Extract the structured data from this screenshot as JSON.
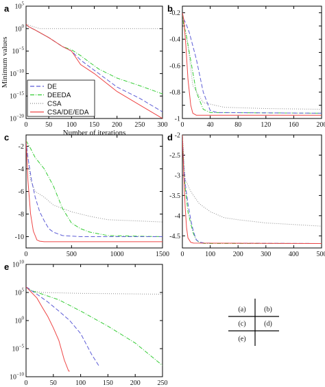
{
  "chart_data": [
    {
      "id": "a",
      "panel_label": "a",
      "type": "line",
      "yscale": "log",
      "xlabel": "Number of iterations",
      "ylabel": "Minimum values",
      "xlim": [
        0,
        300
      ],
      "ylim": [
        1e-20,
        100000.0
      ],
      "xticks": [
        0,
        50,
        100,
        150,
        200,
        250,
        300
      ],
      "yticks": [
        1e-20,
        1e-15,
        1e-10,
        1e-05,
        1,
        100000.0
      ],
      "ytick_labels": [
        {
          "base": "10",
          "exp": "−20"
        },
        {
          "base": "10",
          "exp": "−15"
        },
        {
          "base": "10",
          "exp": "−10"
        },
        {
          "base": "10",
          "exp": "−5"
        },
        {
          "base": "10",
          "exp": "0"
        },
        {
          "base": "10",
          "exp": "5"
        }
      ],
      "series": [
        {
          "name": "DE",
          "color": "#5b5bd6",
          "dash": "6,3",
          "x": [
            0,
            5,
            20,
            50,
            80,
            100,
            120,
            140,
            160,
            200,
            250,
            300
          ],
          "y": [
            10,
            3,
            0.5,
            0.01,
            0.0001,
            1e-05,
            1e-07,
            3e-09,
            1e-10,
            1e-13,
            3e-16,
            3e-19
          ]
        },
        {
          "name": "DEEDA",
          "color": "#33cc33",
          "dash": "6,2,1,2",
          "x": [
            0,
            5,
            20,
            50,
            80,
            100,
            120,
            140,
            160,
            200,
            250,
            300
          ],
          "y": [
            10,
            3,
            0.5,
            0.01,
            0.0001,
            2e-05,
            1e-06,
            3e-08,
            1e-09,
            1e-11,
            2e-13,
            3e-15
          ]
        },
        {
          "name": "CSA",
          "color": "#8a8a8a",
          "dash": "1,2",
          "x": [
            0,
            15,
            30,
            300
          ],
          "y": [
            10,
            3,
            1,
            1
          ]
        },
        {
          "name": "CSA/DE/EDA",
          "color": "#ee4444",
          "dash": "",
          "x": [
            0,
            5,
            20,
            50,
            80,
            100,
            120,
            150,
            200,
            250,
            300
          ],
          "y": [
            10,
            3,
            0.5,
            0.01,
            0.0001,
            1e-05,
            1e-08,
            1e-10,
            1e-14,
            1e-17,
            1e-20
          ]
        }
      ],
      "legend": {
        "position": "bottom-left",
        "entries": [
          "DE",
          "DEEDA",
          "CSA",
          "CSA/DE/EDA"
        ]
      }
    },
    {
      "id": "b",
      "panel_label": "b",
      "type": "line",
      "yscale": "linear",
      "xlim": [
        0,
        200
      ],
      "ylim": [
        -1,
        -0.15
      ],
      "xticks": [
        0,
        40,
        80,
        120,
        160,
        200
      ],
      "yticks": [
        -1,
        -0.9,
        -0.8,
        -0.7,
        -0.6,
        -0.5,
        -0.4,
        -0.3,
        -0.2
      ],
      "ytick_labels": [
        "-1",
        "",
        "-0.8",
        "",
        "-0.6",
        "",
        "-0.4",
        "",
        "-0.2"
      ],
      "series": [
        {
          "name": "DE",
          "color": "#5b5bd6",
          "dash": "6,3",
          "x": [
            0,
            2,
            5,
            10,
            20,
            30,
            40,
            50,
            200
          ],
          "y": [
            -0.2,
            -0.25,
            -0.28,
            -0.35,
            -0.55,
            -0.8,
            -0.94,
            -0.955,
            -0.96
          ]
        },
        {
          "name": "DEEDA",
          "color": "#33cc33",
          "dash": "6,2,1,2",
          "x": [
            0,
            2,
            5,
            10,
            20,
            30,
            40,
            200
          ],
          "y": [
            -0.2,
            -0.3,
            -0.35,
            -0.5,
            -0.8,
            -0.93,
            -0.955,
            -0.96
          ]
        },
        {
          "name": "CSA",
          "color": "#8a8a8a",
          "dash": "1,2",
          "x": [
            0,
            3,
            8,
            15,
            30,
            60,
            120,
            200
          ],
          "y": [
            -0.2,
            -0.3,
            -0.45,
            -0.75,
            -0.88,
            -0.915,
            -0.925,
            -0.93
          ]
        },
        {
          "name": "CSA/DE/EDA",
          "color": "#ee4444",
          "dash": "",
          "x": [
            0,
            2,
            5,
            8,
            12,
            15,
            20,
            200
          ],
          "y": [
            -0.2,
            -0.25,
            -0.45,
            -0.7,
            -0.9,
            -0.96,
            -0.975,
            -0.975
          ]
        }
      ]
    },
    {
      "id": "c",
      "panel_label": "c",
      "type": "line",
      "yscale": "linear",
      "xlim": [
        0,
        1500
      ],
      "ylim": [
        -11,
        -1
      ],
      "xticks": [
        0,
        500,
        1000,
        1500
      ],
      "yticks": [
        -10,
        -8,
        -6,
        -4,
        -2
      ],
      "ytick_labels": [
        "-10",
        "-8",
        "-6",
        "-4",
        "-2"
      ],
      "series": [
        {
          "name": "DE",
          "color": "#5b5bd6",
          "dash": "6,3",
          "x": [
            0,
            20,
            60,
            100,
            150,
            200,
            250,
            300,
            400,
            600,
            1500
          ],
          "y": [
            -1.5,
            -3,
            -5,
            -6.5,
            -7.8,
            -8.6,
            -9.3,
            -9.6,
            -9.9,
            -10,
            -10
          ]
        },
        {
          "name": "DEEDA",
          "color": "#33cc33",
          "dash": "6,2,1,2",
          "x": [
            0,
            50,
            100,
            200,
            300,
            400,
            500,
            600,
            700,
            900,
            1500
          ],
          "y": [
            -1.5,
            -2.2,
            -3,
            -4,
            -5.5,
            -7.5,
            -8.8,
            -9.3,
            -9.6,
            -9.9,
            -10
          ]
        },
        {
          "name": "CSA",
          "color": "#8a8a8a",
          "dash": "1,2",
          "x": [
            0,
            50,
            100,
            200,
            300,
            500,
            700,
            900,
            1200,
            1500
          ],
          "y": [
            -1.5,
            -5,
            -6,
            -6.5,
            -7.2,
            -7.8,
            -8.2,
            -8.5,
            -8.6,
            -8.7
          ]
        },
        {
          "name": "CSA/DE/EDA",
          "color": "#ee4444",
          "dash": "",
          "x": [
            0,
            20,
            50,
            80,
            120,
            150,
            200,
            1500
          ],
          "y": [
            -1.5,
            -5,
            -8,
            -9.5,
            -10.3,
            -10.4,
            -10.45,
            -10.45
          ]
        }
      ]
    },
    {
      "id": "d",
      "panel_label": "d",
      "type": "line",
      "yscale": "linear",
      "xlim": [
        0,
        500
      ],
      "ylim": [
        -4.8,
        -2
      ],
      "xticks": [
        0,
        100,
        200,
        300,
        400,
        500
      ],
      "yticks": [
        -4.5,
        -4,
        -3.5,
        -3,
        -2.5,
        -2
      ],
      "ytick_labels": [
        "-4.5",
        "-4",
        "-3.5",
        "-3",
        "-2.5",
        "-2"
      ],
      "series": [
        {
          "name": "DE",
          "color": "#5b5bd6",
          "dash": "6,3",
          "x": [
            0,
            5,
            10,
            20,
            30,
            40,
            50,
            60,
            80,
            500
          ],
          "y": [
            -2,
            -2.8,
            -3.2,
            -3.7,
            -4.1,
            -4.4,
            -4.6,
            -4.65,
            -4.68,
            -4.69
          ]
        },
        {
          "name": "DEEDA",
          "color": "#33cc33",
          "dash": "6,2,1,2",
          "x": [
            0,
            5,
            10,
            20,
            30,
            40,
            50,
            60,
            70,
            80,
            500
          ],
          "y": [
            -2,
            -2.8,
            -3.3,
            -3.9,
            -4.2,
            -4.45,
            -4.6,
            -4.66,
            -4.68,
            -4.69,
            -4.69
          ]
        },
        {
          "name": "CSA",
          "color": "#8a8a8a",
          "dash": "1,2",
          "x": [
            0,
            10,
            30,
            60,
            100,
            150,
            200,
            300,
            400,
            500
          ],
          "y": [
            -2,
            -3.1,
            -3.4,
            -3.7,
            -3.9,
            -4.05,
            -4.1,
            -4.18,
            -4.22,
            -4.26
          ]
        },
        {
          "name": "CSA/DE/EDA",
          "color": "#ee4444",
          "dash": "",
          "x": [
            0,
            5,
            10,
            15,
            20,
            30,
            40,
            500
          ],
          "y": [
            -2,
            -3,
            -3.8,
            -4.3,
            -4.55,
            -4.66,
            -4.68,
            -4.69
          ]
        }
      ]
    },
    {
      "id": "e",
      "panel_label": "e",
      "type": "line",
      "yscale": "log",
      "xlim": [
        0,
        250
      ],
      "ylim": [
        1e-10,
        10000000000.0
      ],
      "xticks": [
        0,
        50,
        100,
        150,
        200,
        250
      ],
      "yticks": [
        1e-10,
        1e-05,
        1,
        100000.0,
        10000000000.0
      ],
      "ytick_labels": [
        {
          "base": "10",
          "exp": "−10"
        },
        {
          "base": "10",
          "exp": "−5"
        },
        {
          "base": "10",
          "exp": "0"
        },
        {
          "base": "10",
          "exp": "5"
        },
        {
          "base": "10",
          "exp": "10"
        }
      ],
      "series": [
        {
          "name": "DE",
          "color": "#5b5bd6",
          "dash": "6,3",
          "x": [
            0,
            5,
            10,
            20,
            40,
            60,
            80,
            100,
            120,
            133
          ],
          "y": [
            1000000.0,
            500000.0,
            200000.0,
            50000.0,
            2000.0,
            50,
            1,
            0.005,
            1e-06,
            1e-08
          ]
        },
        {
          "name": "DEEDA",
          "color": "#33cc33",
          "dash": "6,2,1,2",
          "x": [
            0,
            10,
            30,
            60,
            100,
            150,
            200,
            250
          ],
          "y": [
            1000000.0,
            200000.0,
            50000.0,
            5000.0,
            50,
            0.1,
            0.0001,
            1e-08
          ]
        },
        {
          "name": "CSA",
          "color": "#8a8a8a",
          "dash": "1,2",
          "x": [
            0,
            10,
            30,
            100,
            250
          ],
          "y": [
            1000000.0,
            200000.0,
            100000.0,
            70000.0,
            50000.0
          ]
        },
        {
          "name": "CSA/DE/EDA",
          "color": "#ee4444",
          "dash": "",
          "x": [
            0,
            10,
            20,
            30,
            40,
            50,
            60,
            70,
            78,
            80
          ],
          "y": [
            1000000.0,
            100000.0,
            10000.0,
            200,
            5,
            0.05,
            0.0003,
            1e-07,
            1e-09,
            1e-09
          ]
        }
      ]
    }
  ],
  "panel_key": {
    "cells": [
      {
        "row": 0,
        "col": 0,
        "text": "(a)"
      },
      {
        "row": 0,
        "col": 1,
        "text": "(b)"
      },
      {
        "row": 1,
        "col": 0,
        "text": "(c)"
      },
      {
        "row": 1,
        "col": 1,
        "text": "(d)"
      },
      {
        "row": 2,
        "col": 0,
        "text": "(e)"
      }
    ]
  }
}
